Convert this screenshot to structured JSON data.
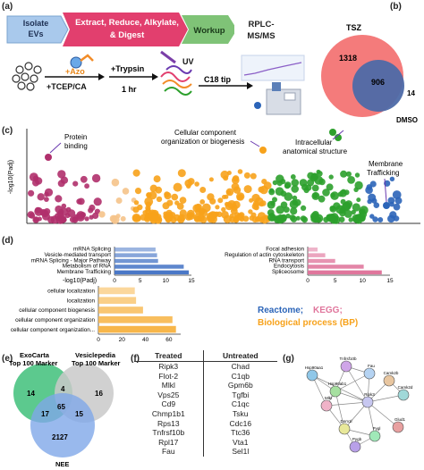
{
  "panels": {
    "a": "(a)",
    "b": "(b)",
    "c": "(c)",
    "d": "(d)",
    "e": "(e)",
    "f": "(f)",
    "g": "(g)"
  },
  "workflow": {
    "steps": [
      "Isolate EVs",
      "Extract, Reduce, Alkylate, & Digest",
      "Workup",
      "RPLC-MS/MS"
    ],
    "step_colors": [
      "#a9c9ec",
      "#e23f6e",
      "#7fc377",
      "#ffffff"
    ],
    "reagent_top": "+Azo",
    "reagent_bottom": "+TCEP/CA",
    "trypsin": "+Trypsin",
    "trypsin_time": "1 hr",
    "uv": "UV",
    "tip": "C18 tip"
  },
  "venn_b": {
    "label_a": "TSZ",
    "label_b": "DMSO",
    "only_a": "1318",
    "both": "906",
    "only_b": "14",
    "color_a": "#f47b7b",
    "color_b": "#4d6aa8"
  },
  "manhattan": {
    "ylabel": "-log10(Padj)",
    "annotations": [
      "Protein binding",
      "Cellular component organization or biogenesis",
      "Intracellular anatomical structure",
      "Membrane Trafficking"
    ],
    "colors": {
      "mf": "#b0306c",
      "bp": "#f7a21b",
      "cc": "#2ca02c",
      "reactome": "#2b64b8"
    }
  },
  "enrichment": {
    "xlabel": "-log10(Padj)",
    "legend_reactome": "Reactome;",
    "legend_kegg": "KEGG;",
    "legend_bp": "Biological process (BP)",
    "reactome": {
      "color": "#4a78c7",
      "categories": [
        "mRNA Splicing",
        "Vesicle-mediated transport",
        "mRNA Splicing - Major Pathway",
        "Metabolism of RNA",
        "Membrane Trafficking"
      ],
      "values": [
        8,
        8.3,
        8.5,
        13.5,
        14.5
      ],
      "ticks": [
        "0",
        "5",
        "10",
        "15"
      ],
      "xlim": [
        0,
        15
      ]
    },
    "kegg": {
      "color": "#e0769c",
      "categories": [
        "Focal adhesion",
        "Regulation of actin cytoskeleton",
        "RNA transport",
        "Endocytosis",
        "Spliceosome"
      ],
      "values": [
        1.8,
        3.2,
        5,
        10.2,
        13.5
      ],
      "ticks": [
        "0",
        "5",
        "10",
        "15"
      ],
      "xlim": [
        0,
        15
      ]
    },
    "bp": {
      "color": "#f7b64a",
      "categories": [
        "cellular localization",
        "localization",
        "cellular component biogenesis",
        "cellular component organization",
        "cellular component organization..."
      ],
      "values": [
        31,
        32,
        38,
        63,
        66
      ],
      "ticks": [
        "0",
        "20",
        "40",
        "60"
      ],
      "xlim": [
        0,
        70
      ]
    }
  },
  "venn_e": {
    "set_a": "ExoCarta Top 100 Marker",
    "set_b": "Vesiclepedia Top 100 Marker",
    "set_c": "NEE",
    "only_a": "14",
    "ab": "4",
    "only_b": "16",
    "ac": "17",
    "abc": "65",
    "bc": "15",
    "only_c": "2127",
    "color_a": "#3fbf7a",
    "color_b": "#c9c9c9",
    "color_c": "#7fa8e8"
  },
  "table_f": {
    "headers": [
      "Treated",
      "Untreated"
    ],
    "rows": [
      [
        "Ripk3",
        "Chad"
      ],
      [
        "Flot-2",
        "C1qb"
      ],
      [
        "Mlkl",
        "Gpm6b"
      ],
      [
        "Vps25",
        "Tgfbi"
      ],
      [
        "Cd9",
        "C1qc"
      ],
      [
        "Chmp1b1",
        "Tsku"
      ],
      [
        "Rps13",
        "Cdc16"
      ],
      [
        "Tnfrsf10b",
        "Ttc36"
      ],
      [
        "Rpl17",
        "Vta1"
      ],
      [
        "Fau",
        "Sel1l"
      ]
    ]
  },
  "network_g": {
    "nodes": [
      "Tnfrsf10b",
      "Fau",
      "Hsp90aa1",
      "Hsp90ab1",
      "Mlkl",
      "Ripk3",
      "Camk2b",
      "Camk2d",
      "Dnm1l",
      "Pygb",
      "Pygl",
      "Glud1"
    ]
  }
}
